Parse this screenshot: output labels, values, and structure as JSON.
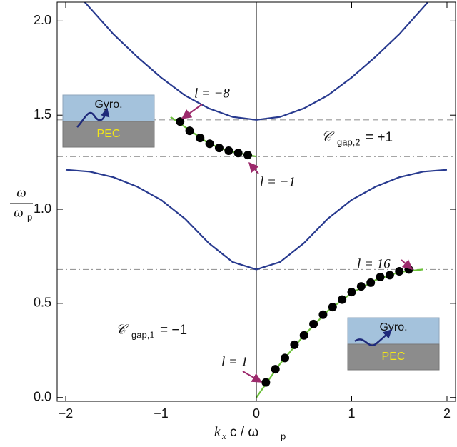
{
  "chart_data": {
    "type": "line",
    "x_label_parts": [
      "k",
      "x",
      "c / ω",
      "p"
    ],
    "y_label_parts": [
      "ω",
      "ω",
      "p"
    ],
    "xlim": [
      -2.09,
      2.09
    ],
    "ylim": [
      -0.02,
      2.1
    ],
    "xticks": [
      {
        "value": -2,
        "label": "−2"
      },
      {
        "value": -1,
        "label": "−1"
      },
      0,
      1,
      2
    ],
    "yticks": [
      {
        "value": 0,
        "label": "0.0"
      },
      0.5,
      {
        "value": 1,
        "label": "1.0"
      },
      1.5,
      {
        "value": 2,
        "label": "2.0"
      }
    ],
    "vline_x": 0,
    "hlines": [
      {
        "value": 1.475,
        "style": "dashed"
      },
      {
        "value": 1.28,
        "style": "dashdot"
      },
      {
        "value": 0.68,
        "style": "dashdot"
      }
    ],
    "series": [
      {
        "style": "line",
        "color": "#283a8f",
        "x": [
          -1.8,
          -1.5,
          -1.25,
          -1,
          -0.75,
          -0.5,
          -0.25,
          0,
          0.25,
          0.5,
          0.75,
          1,
          1.25,
          1.5,
          1.8
        ],
        "values": [
          2.1,
          1.93,
          1.81,
          1.7,
          1.605,
          1.536,
          1.491,
          1.475,
          1.491,
          1.536,
          1.605,
          1.7,
          1.81,
          1.93,
          2.1
        ]
      },
      {
        "style": "line",
        "color": "#283a8f",
        "x": [
          -2,
          -1.75,
          -1.5,
          -1.25,
          -1,
          -0.75,
          -0.5,
          -0.25,
          0,
          0.25,
          0.5,
          0.75,
          1,
          1.25,
          1.5,
          1.75,
          2
        ],
        "values": [
          1.21,
          1.2,
          1.17,
          1.12,
          1.05,
          0.95,
          0.82,
          0.72,
          0.68,
          0.72,
          0.82,
          0.95,
          1.05,
          1.12,
          1.17,
          1.2,
          1.21
        ]
      },
      {
        "style": "line",
        "color": "#6cc13a",
        "x": [
          0,
          0.25,
          0.5,
          0.75,
          1,
          1.25,
          1.5,
          1.75
        ],
        "values": [
          0,
          0.18,
          0.33,
          0.46,
          0.555,
          0.624,
          0.666,
          0.68
        ]
      },
      {
        "style": "line",
        "color": "#6cc13a",
        "x": [
          -0.9,
          -0.7,
          -0.5,
          -0.3,
          -0.1,
          0
        ],
        "values": [
          1.49,
          1.42,
          1.35,
          1.31,
          1.29,
          1.28
        ]
      },
      {
        "style": "dots",
        "color": "#000000",
        "x": [
          0.1,
          0.2,
          0.3,
          0.4,
          0.5,
          0.6,
          0.7,
          0.8,
          0.9,
          1.0,
          1.1,
          1.2,
          1.3,
          1.4,
          1.5,
          1.6
        ],
        "values": [
          0.08,
          0.15,
          0.21,
          0.28,
          0.33,
          0.39,
          0.44,
          0.48,
          0.52,
          0.56,
          0.59,
          0.61,
          0.64,
          0.65,
          0.67,
          0.68
        ]
      },
      {
        "style": "dots",
        "color": "#000000",
        "x": [
          -0.09,
          -0.19,
          -0.29,
          -0.39,
          -0.49,
          -0.59,
          -0.7,
          -0.8
        ],
        "values": [
          1.288,
          1.299,
          1.311,
          1.326,
          1.348,
          1.379,
          1.417,
          1.466
        ]
      }
    ],
    "annotations": [
      "l = −8",
      "l = −1",
      "l = 16",
      "l = 1"
    ],
    "chern_2": [
      "𝒞",
      "gap,2",
      "= +1"
    ],
    "chern_1": [
      "𝒞",
      "gap,1",
      "= −1"
    ],
    "insets": [
      {
        "top": "Gyro.",
        "bottom": "PEC"
      },
      {
        "top": "Gyro.",
        "bottom": "PEC"
      }
    ]
  }
}
